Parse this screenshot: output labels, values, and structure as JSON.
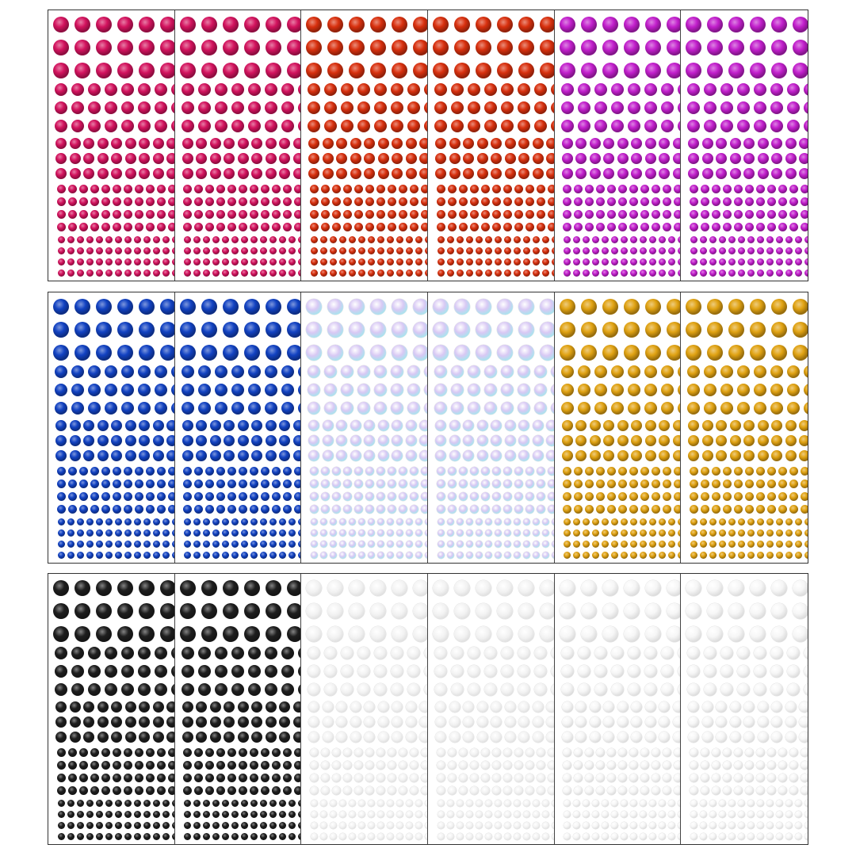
{
  "panels": [
    {
      "sheets": [
        {
          "color": "#d3135e",
          "style": "gem"
        },
        {
          "color": "#d3135e",
          "style": "gem"
        },
        {
          "color": "#d8300e",
          "style": "gem"
        },
        {
          "color": "#d8300e",
          "style": "gem"
        },
        {
          "color": "#c21fcc",
          "style": "gem"
        },
        {
          "color": "#c21fcc",
          "style": "gem"
        }
      ]
    },
    {
      "sheets": [
        {
          "color": "#1242c2",
          "style": "gem"
        },
        {
          "color": "#1242c2",
          "style": "gem"
        },
        {
          "color": "#bfe6f0",
          "style": "iridescent"
        },
        {
          "color": "#bfe6f0",
          "style": "iridescent"
        },
        {
          "color": "#e0a212",
          "style": "gem"
        },
        {
          "color": "#e0a212",
          "style": "gem"
        }
      ]
    },
    {
      "sheets": [
        {
          "color": "#1e1e1e",
          "style": "gem"
        },
        {
          "color": "#1e1e1e",
          "style": "gem"
        },
        {
          "color": "#e6e6e6",
          "style": "clear"
        },
        {
          "color": "#e6e6e6",
          "style": "clear"
        },
        {
          "color": "#eeeeee",
          "style": "pearl"
        },
        {
          "color": "#eeeeee",
          "style": "pearl"
        }
      ]
    }
  ]
}
